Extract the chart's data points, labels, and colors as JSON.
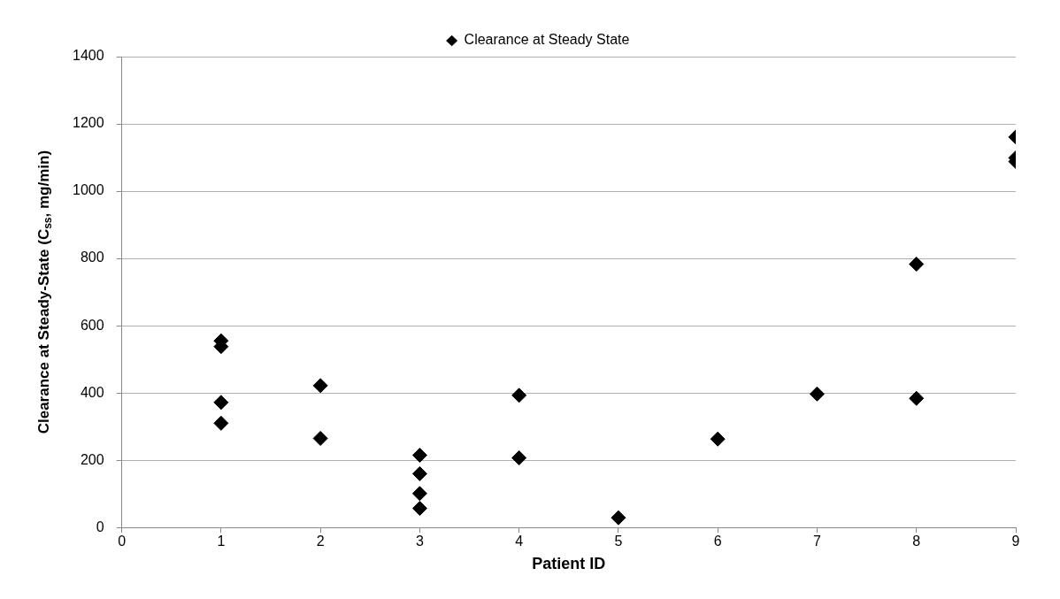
{
  "chart_data": {
    "type": "scatter",
    "xlabel": "Patient ID",
    "ylabel": "Clearance at Steady-State (C$_{ss}$, mg/min)",
    "series": [
      {
        "name": "Clearance at Steady State",
        "color": "#000000",
        "x": [
          1,
          1,
          1,
          1,
          2,
          2,
          3,
          3,
          3,
          3,
          4,
          4,
          5,
          6,
          7,
          8,
          8,
          9,
          9,
          9
        ],
        "values": [
          555,
          538,
          372,
          310,
          422,
          265,
          215,
          160,
          101,
          57,
          393,
          207,
          29,
          263,
          397,
          783,
          384,
          1161,
          1099,
          1088
        ]
      }
    ],
    "xlim": [
      0,
      9
    ],
    "xticks": [
      0,
      1,
      2,
      3,
      4,
      5,
      6,
      7,
      8,
      9
    ],
    "ylim": [
      0,
      1400
    ],
    "yticks": [
      0,
      200,
      400,
      600,
      800,
      1000,
      1200,
      1400
    ],
    "grid": "y",
    "legend": "top",
    "marker": "diamond"
  }
}
